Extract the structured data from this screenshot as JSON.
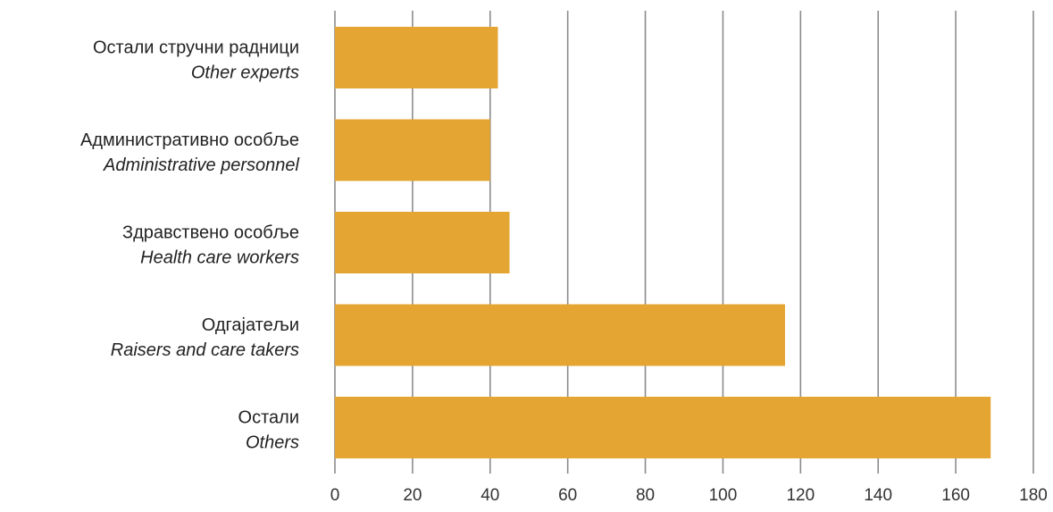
{
  "chart_data": {
    "type": "bar",
    "orientation": "horizontal",
    "categories": [
      {
        "label": "Остали стручни радници",
        "sublabel": "Other experts"
      },
      {
        "label": "Административно особље",
        "sublabel": "Administrative personnel"
      },
      {
        "label": "Здравствено особље",
        "sublabel": "Health care workers"
      },
      {
        "label": "Одгајатељи",
        "sublabel": "Raisers and care takers"
      },
      {
        "label": "Остали",
        "sublabel": "Others"
      }
    ],
    "values": [
      42,
      40,
      45,
      116,
      169
    ],
    "xlim": [
      0,
      180
    ],
    "xticks": [
      "0",
      "20",
      "40",
      "60",
      "80",
      "100",
      "120",
      "140",
      "160",
      "180"
    ],
    "title": "",
    "xlabel": "",
    "ylabel": "",
    "grid": "vertical",
    "legend": "none",
    "colors": {
      "bar": "#E5A532",
      "grid": "#8c8c8c"
    }
  }
}
